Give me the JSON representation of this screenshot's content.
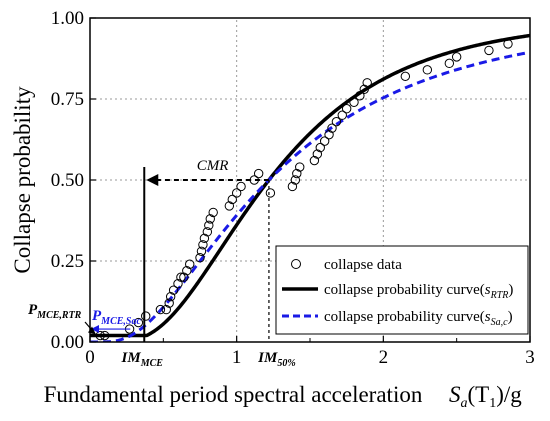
{
  "chart_data": {
    "type": "scatter",
    "xlabel": "Fundamental period spectral acceleration",
    "xlabel_symbol": "S_a(T_1)/g",
    "ylabel": "Collapse probability",
    "xlim": [
      0,
      3
    ],
    "ylim": [
      0,
      1
    ],
    "x_ticks": [
      "0",
      "1",
      "2",
      "3"
    ],
    "y_ticks": [
      "0.00",
      "0.25",
      "0.50",
      "0.75",
      "1.00"
    ],
    "grid": true,
    "legend_position": "bottom-right",
    "series": [
      {
        "name": "collapse data",
        "kind": "markers",
        "points": [
          [
            0.07,
            0.02
          ],
          [
            0.1,
            0.02
          ],
          [
            0.27,
            0.04
          ],
          [
            0.33,
            0.06
          ],
          [
            0.38,
            0.08
          ],
          [
            0.48,
            0.1
          ],
          [
            0.52,
            0.1
          ],
          [
            0.54,
            0.12
          ],
          [
            0.55,
            0.14
          ],
          [
            0.57,
            0.16
          ],
          [
            0.6,
            0.18
          ],
          [
            0.62,
            0.2
          ],
          [
            0.64,
            0.2
          ],
          [
            0.66,
            0.22
          ],
          [
            0.68,
            0.24
          ],
          [
            0.75,
            0.26
          ],
          [
            0.76,
            0.28
          ],
          [
            0.77,
            0.3
          ],
          [
            0.78,
            0.32
          ],
          [
            0.8,
            0.34
          ],
          [
            0.81,
            0.36
          ],
          [
            0.82,
            0.38
          ],
          [
            0.84,
            0.4
          ],
          [
            0.95,
            0.42
          ],
          [
            0.97,
            0.44
          ],
          [
            1.0,
            0.46
          ],
          [
            1.03,
            0.48
          ],
          [
            1.12,
            0.5
          ],
          [
            1.15,
            0.52
          ],
          [
            1.23,
            0.46
          ],
          [
            1.38,
            0.48
          ],
          [
            1.4,
            0.5
          ],
          [
            1.41,
            0.52
          ],
          [
            1.43,
            0.54
          ],
          [
            1.53,
            0.56
          ],
          [
            1.55,
            0.58
          ],
          [
            1.57,
            0.6
          ],
          [
            1.6,
            0.62
          ],
          [
            1.63,
            0.64
          ],
          [
            1.65,
            0.66
          ],
          [
            1.68,
            0.68
          ],
          [
            1.72,
            0.7
          ],
          [
            1.75,
            0.72
          ],
          [
            1.8,
            0.74
          ],
          [
            1.84,
            0.76
          ],
          [
            1.87,
            0.78
          ],
          [
            1.89,
            0.8
          ],
          [
            2.15,
            0.82
          ],
          [
            2.3,
            0.84
          ],
          [
            2.45,
            0.86
          ],
          [
            2.5,
            0.88
          ],
          [
            2.72,
            0.9
          ],
          [
            2.85,
            0.92
          ]
        ]
      },
      {
        "name_prefix": "collapse probability curve(",
        "name_sub": "s",
        "name_subsub": "RTR",
        "name_suffix": ")",
        "kind": "lognormal-cdf",
        "color": "#000000",
        "style": "solid",
        "median": 1.22,
        "beta": 0.56,
        "x_start": 0.37
      },
      {
        "name_prefix": "collapse probability curve(",
        "name_sub": "s",
        "name_subsub": "Sa,c",
        "name_suffix": ")",
        "kind": "lognormal-cdf",
        "color": "#1a1ae6",
        "style": "dashed",
        "median": 1.22,
        "beta": 0.72,
        "x_start": 0.0
      }
    ],
    "annotations": {
      "cmr": "CMR",
      "im_mce": "IM",
      "im_mce_sub": "MCE",
      "im_50": "IM",
      "im_50_sub": "50%",
      "p_mce_sac": "P",
      "p_mce_sac_sub": "MCE,Sac",
      "p_mce_rtr": "P",
      "p_mce_rtr_sub": "MCE,RTR",
      "im_mce_x": 0.37,
      "im_50_x": 1.22
    }
  }
}
